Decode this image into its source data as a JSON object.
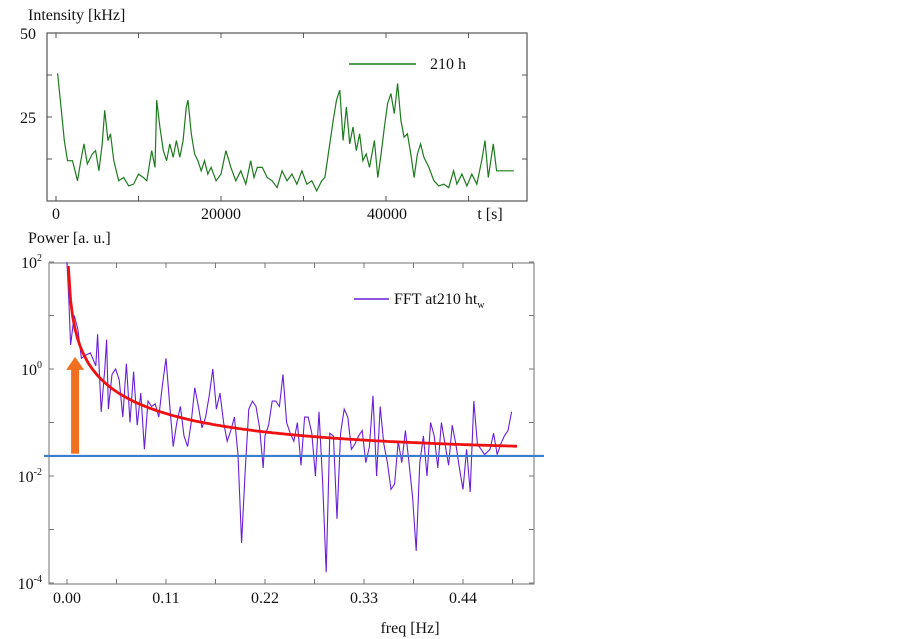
{
  "chart_data": [
    {
      "type": "line",
      "title": "",
      "ylabel": "Intensity [kHz]",
      "xlabel": "t [s]",
      "xlim": [
        0,
        57000
      ],
      "ylim": [
        0,
        50
      ],
      "x_ticks": [
        0,
        20000,
        40000
      ],
      "x_tick_labels": [
        "0",
        "20000",
        "40000"
      ],
      "y_ticks": [
        25,
        50
      ],
      "y_tick_labels": [
        "25",
        "50"
      ],
      "legend": {
        "position": "top-right",
        "entries": [
          "210 h"
        ]
      },
      "series": [
        {
          "name": "210 h",
          "color": "#1e7a1e",
          "t_ks": [
            0.2,
            0.6,
            1.0,
            1.4,
            2.0,
            2.6,
            3.0,
            3.4,
            3.8,
            4.4,
            4.8,
            5.2,
            5.6,
            5.9,
            6.3,
            6.6,
            7.0,
            7.6,
            8.2,
            8.8,
            9.4,
            10.0,
            10.6,
            11.0,
            11.6,
            12.0,
            12.2,
            12.6,
            13.0,
            13.4,
            13.8,
            14.2,
            14.6,
            15.0,
            15.4,
            15.8,
            16.0,
            16.4,
            16.8,
            17.2,
            17.6,
            18.0,
            18.4,
            18.8,
            19.4,
            20.0,
            20.6,
            21.2,
            21.8,
            22.4,
            23.0,
            23.6,
            24.0,
            24.4,
            25.0,
            25.6,
            26.2,
            26.8,
            27.4,
            28.0,
            28.6,
            29.2,
            29.8,
            30.4,
            31.0,
            31.6,
            32.2,
            32.6,
            33.0,
            33.6,
            34.0,
            34.4,
            34.8,
            35.2,
            35.6,
            36.0,
            36.4,
            36.8,
            37.2,
            37.6,
            38.0,
            38.6,
            39.0,
            39.4,
            39.8,
            40.2,
            40.6,
            41.0,
            41.4,
            41.8,
            42.2,
            42.6,
            43.0,
            43.4,
            43.8,
            44.2,
            44.6,
            45.2,
            45.8,
            46.4,
            47.0,
            47.6,
            48.2,
            48.6,
            49.2,
            49.8,
            50.4,
            51.0,
            51.6,
            52.0,
            52.4,
            53.0,
            53.4,
            55.5
          ],
          "values": [
            38,
            28,
            18,
            12,
            12,
            6,
            12,
            17,
            11,
            14,
            15,
            9,
            17,
            27,
            18,
            20,
            12,
            6,
            7,
            4.5,
            5,
            8,
            7,
            6,
            15,
            10,
            30,
            22,
            15,
            12,
            17,
            13,
            18,
            13,
            18,
            28,
            30,
            20,
            14,
            12,
            9,
            12,
            8,
            10,
            6,
            8,
            15,
            10,
            6,
            9,
            5,
            12,
            7,
            10,
            10,
            7,
            6,
            4,
            9,
            6,
            8,
            5,
            9,
            5,
            6,
            3,
            6,
            7,
            14,
            24,
            30,
            33,
            18,
            28,
            17,
            22,
            15,
            20,
            12,
            14,
            10,
            18,
            7,
            14,
            22,
            29,
            32,
            26,
            35,
            24,
            19,
            20,
            14,
            7,
            14,
            17,
            13,
            10,
            6,
            4.5,
            5,
            4,
            9,
            5,
            8,
            4.5,
            8,
            5,
            12,
            18,
            7,
            17,
            9,
            9
          ]
        }
      ]
    },
    {
      "type": "line",
      "title": "",
      "ylabel": "Power [a. u.]",
      "xlabel": "freq [Hz]",
      "yscale": "log",
      "xlim": [
        -0.021,
        0.52
      ],
      "ylim_log10": [
        -4,
        2
      ],
      "x_ticks": [
        0,
        0.11,
        0.22,
        0.33,
        0.44
      ],
      "x_tick_labels": [
        "0.00",
        "0.11",
        "0.22",
        "0.33",
        "0.44"
      ],
      "y_tick_labels": [
        {
          "base": "10",
          "exp": "2"
        },
        {
          "base": "10",
          "exp": "0"
        },
        {
          "base": "10",
          "exp": "-2"
        },
        {
          "base": "10",
          "exp": "-4"
        }
      ],
      "legend": {
        "position": "top-right",
        "entries": [
          {
            "text": "FFT at210 ht",
            "sub": "w"
          }
        ]
      },
      "series": [
        {
          "name": "FFT at210 ht_w",
          "color": "#6a1fd6",
          "freq": [
            0.0,
            0.002,
            0.004,
            0.008,
            0.012,
            0.016,
            0.02,
            0.026,
            0.032,
            0.034,
            0.038,
            0.042,
            0.044,
            0.046,
            0.05,
            0.054,
            0.058,
            0.062,
            0.066,
            0.07,
            0.074,
            0.078,
            0.082,
            0.086,
            0.09,
            0.094,
            0.098,
            0.102,
            0.106,
            0.11,
            0.114,
            0.118,
            0.122,
            0.126,
            0.13,
            0.134,
            0.138,
            0.142,
            0.146,
            0.15,
            0.154,
            0.158,
            0.162,
            0.166,
            0.17,
            0.174,
            0.178,
            0.182,
            0.186,
            0.19,
            0.194,
            0.198,
            0.202,
            0.206,
            0.21,
            0.214,
            0.218,
            0.22,
            0.224,
            0.228,
            0.232,
            0.236,
            0.24,
            0.244,
            0.248,
            0.252,
            0.256,
            0.26,
            0.264,
            0.268,
            0.272,
            0.276,
            0.28,
            0.284,
            0.288,
            0.292,
            0.296,
            0.3,
            0.304,
            0.308,
            0.312,
            0.316,
            0.32,
            0.324,
            0.328,
            0.332,
            0.336,
            0.34,
            0.344,
            0.348,
            0.352,
            0.356,
            0.36,
            0.364,
            0.368,
            0.372,
            0.376,
            0.38,
            0.384,
            0.388,
            0.392,
            0.396,
            0.4,
            0.404,
            0.408,
            0.412,
            0.416,
            0.42,
            0.424,
            0.428,
            0.432,
            0.436,
            0.44,
            0.444,
            0.448,
            0.452,
            0.456,
            0.46,
            0.464,
            0.47,
            0.474,
            0.478,
            0.482,
            0.486,
            0.49,
            0.494
          ],
          "log10_power": [
            2.0,
            1.3,
            0.45,
            1.0,
            0.75,
            0.2,
            0.25,
            0.3,
            0.06,
            0.65,
            -0.8,
            0,
            0.55,
            -0.75,
            -0.1,
            0,
            -0.2,
            -0.9,
            0.1,
            -1.0,
            -0.05,
            -1.05,
            -0.45,
            -1.5,
            -0.6,
            -0.7,
            -0.65,
            -0.9,
            -0.3,
            0.2,
            -0.65,
            -1.45,
            -1.0,
            -0.7,
            -1.25,
            -1.45,
            -1.0,
            -0.35,
            -0.7,
            -1.1,
            -0.9,
            -0.5,
            0,
            -0.75,
            -0.45,
            -1.0,
            -1.35,
            -1.15,
            -0.9,
            -1.6,
            -3.25,
            -1.9,
            -0.75,
            -0.6,
            -0.7,
            -1.1,
            -1.85,
            -1.25,
            -1.05,
            -0.6,
            -0.6,
            -0.7,
            -0.1,
            -1.0,
            -1.2,
            -1.35,
            -1.0,
            -1.8,
            -0.9,
            -0.9,
            -1.2,
            -2.0,
            -0.8,
            -2.1,
            -3.8,
            -1.2,
            -1.25,
            -2.8,
            -1.2,
            -0.75,
            -0.9,
            -1.5,
            -1.4,
            -1.25,
            -1.15,
            -1.75,
            -1.45,
            -0.5,
            -2.0,
            -0.7,
            -1.4,
            -1.75,
            -2.25,
            -2.15,
            -1.35,
            -1.75,
            -1.15,
            -1.75,
            -2.4,
            -3.4,
            -1.75,
            -1.25,
            -2.0,
            -1.0,
            -1.25,
            -1.85,
            -1.0,
            -1.4,
            -1.8,
            -1.05,
            -1.4,
            -1.85,
            -2.25,
            -1.5,
            -2.3,
            -0.6,
            -1.4,
            -1.5,
            -1.6,
            -1.5,
            -1.2,
            -1.6,
            -1.4,
            -1.25,
            -1.15,
            -0.8
          ]
        }
      ],
      "fit_curve": {
        "color": "#ee1111",
        "model": "baseline + amplitude / f^exponent",
        "baseline": 0.0237,
        "amplitude": 0.0043,
        "exponent": 1.52,
        "f_range": [
          0.0015,
          0.5
        ]
      },
      "noise_floor": {
        "color": "#3a7fcf",
        "value": 0.0237
      },
      "arrow": {
        "color": "#f07020",
        "freq": 0.009,
        "from": 0.024,
        "to": 2.0
      }
    }
  ]
}
